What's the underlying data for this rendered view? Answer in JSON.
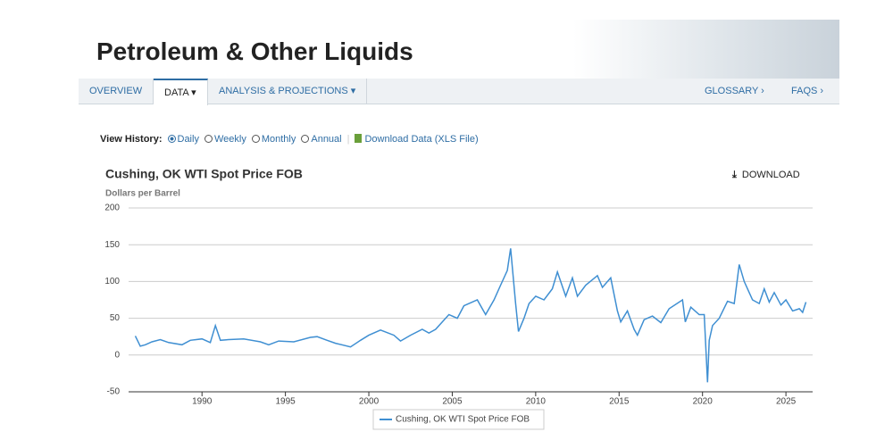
{
  "header": {
    "title": "Petroleum & Other Liquids"
  },
  "nav": {
    "left": [
      "OVERVIEW",
      "DATA",
      "ANALYSIS & PROJECTIONS"
    ],
    "active": "DATA",
    "right": [
      "GLOSSARY ›",
      "FAQS ›"
    ]
  },
  "view_history": {
    "label": "View History:",
    "options": [
      "Daily",
      "Weekly",
      "Monthly",
      "Annual"
    ],
    "selected": "Daily",
    "download": "Download Data (XLS File)"
  },
  "download_button": "DOWNLOAD",
  "chart_data": {
    "type": "line",
    "title": "Cushing, OK WTI Spot Price FOB",
    "subtitle": "Dollars per Barrel",
    "x": [
      1986.0,
      1986.3,
      1986.6,
      1987.0,
      1987.5,
      1988.0,
      1988.8,
      1989.3,
      1990.0,
      1990.5,
      1990.8,
      1991.1,
      1991.6,
      1992.5,
      1993.5,
      1994.0,
      1994.6,
      1995.5,
      1996.5,
      1996.9,
      1997.5,
      1998.0,
      1998.9,
      1999.5,
      2000.0,
      2000.7,
      2001.5,
      2001.9,
      2002.5,
      2003.2,
      2003.6,
      2004.0,
      2004.8,
      2005.3,
      2005.7,
      2006.5,
      2007.0,
      2007.5,
      2007.9,
      2008.3,
      2008.5,
      2008.8,
      2008.97,
      2009.3,
      2009.6,
      2010.0,
      2010.5,
      2011.0,
      2011.3,
      2011.8,
      2012.2,
      2012.5,
      2013.0,
      2013.7,
      2014.0,
      2014.5,
      2014.9,
      2015.1,
      2015.5,
      2015.9,
      2016.1,
      2016.5,
      2017.0,
      2017.5,
      2018.0,
      2018.8,
      2018.97,
      2019.3,
      2019.8,
      2020.1,
      2020.3,
      2020.4,
      2020.6,
      2021.0,
      2021.5,
      2021.9,
      2022.2,
      2022.5,
      2022.8,
      2023.0,
      2023.4,
      2023.7,
      2024.0,
      2024.3,
      2024.7,
      2025.0,
      2025.4,
      2025.8,
      2026.0,
      2026.2
    ],
    "series": [
      {
        "name": "Cushing, OK WTI Spot Price FOB",
        "color": "#3f8fd2",
        "values": [
          26,
          12,
          14,
          18,
          21,
          17,
          14,
          20,
          22,
          17,
          40,
          20,
          21,
          22,
          18,
          14,
          19,
          18,
          24,
          25,
          20,
          16,
          11,
          20,
          27,
          34,
          27,
          19,
          27,
          35,
          30,
          35,
          55,
          50,
          67,
          75,
          55,
          75,
          95,
          115,
          145,
          70,
          32,
          50,
          70,
          80,
          75,
          90,
          113,
          80,
          105,
          80,
          95,
          108,
          92,
          105,
          60,
          45,
          60,
          35,
          27,
          48,
          53,
          44,
          63,
          75,
          45,
          65,
          55,
          55,
          -37,
          20,
          40,
          50,
          73,
          70,
          123,
          100,
          85,
          75,
          70,
          90,
          72,
          85,
          68,
          75,
          60,
          63,
          58,
          72
        ]
      }
    ],
    "xlim": [
      1985.6,
      2026.6
    ],
    "xticks": [
      1990,
      1995,
      2000,
      2005,
      2010,
      2015,
      2020,
      2025
    ],
    "ylim": [
      -50,
      200
    ],
    "yticks": [
      -50,
      0,
      50,
      100,
      150,
      200
    ],
    "grid": true
  }
}
